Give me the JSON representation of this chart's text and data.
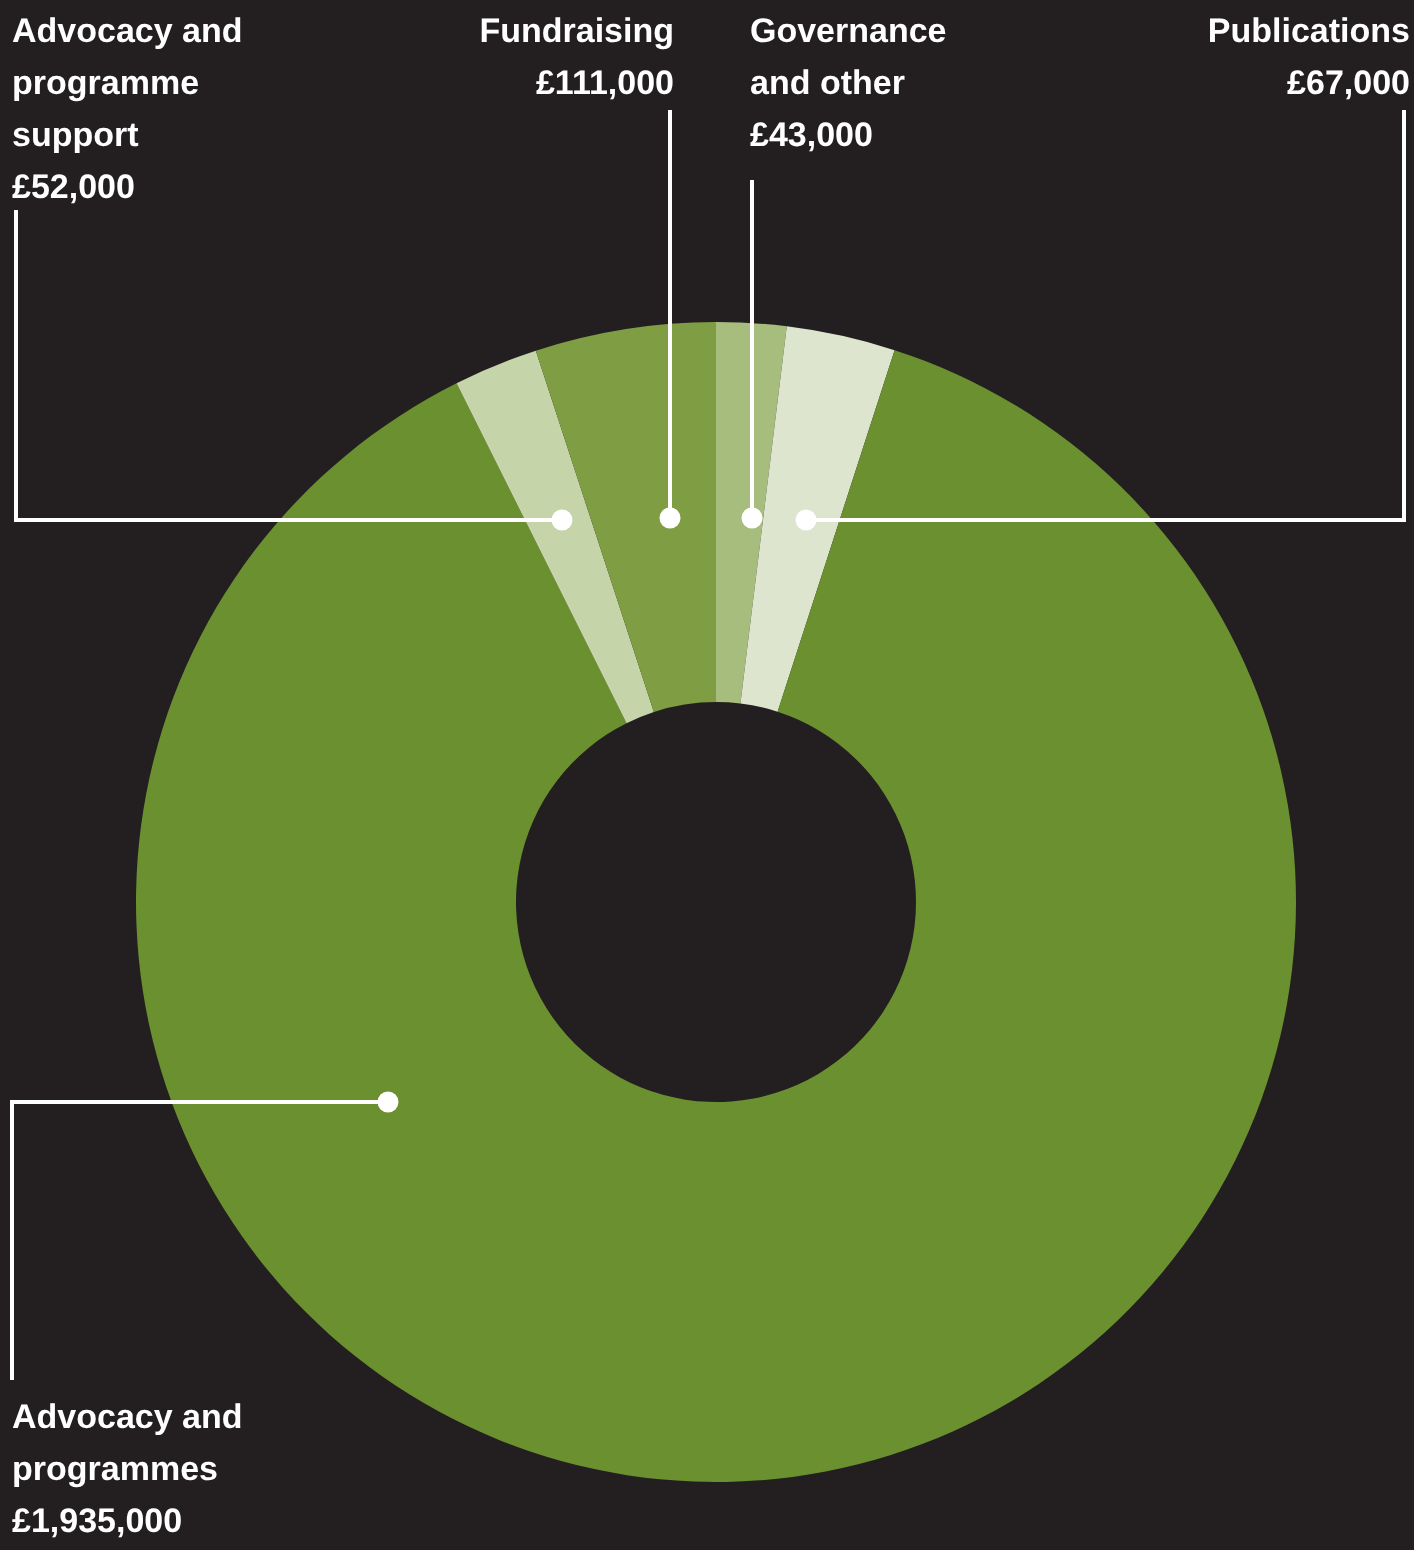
{
  "chart_data": {
    "type": "donut",
    "categories": [
      "Governance and other",
      "Publications",
      "Advocacy and programmes",
      "Advocacy and programme support",
      "Fundraising"
    ],
    "values": [
      43000,
      67000,
      1935000,
      52000,
      111000
    ],
    "value_labels": [
      "£43,000",
      "£67,000",
      "£1,935,000",
      "£52,000",
      "£111,000"
    ],
    "colors": [
      "#a7bd7d",
      "#dde5cf",
      "#6b902f",
      "#c6d4aa",
      "#7f9e44"
    ]
  }
}
